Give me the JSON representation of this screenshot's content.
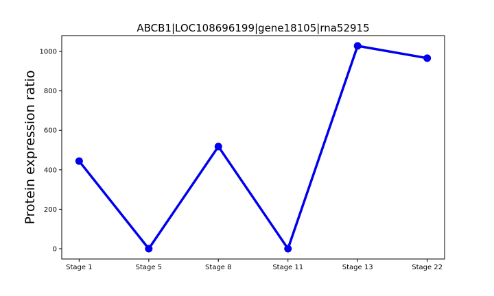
{
  "chart_data": {
    "type": "line",
    "title": "ABCB1|LOC108696199|gene18105|rna52915",
    "xlabel": "",
    "ylabel": "Protein expression ratio",
    "categories": [
      "Stage 1",
      "Stage 5",
      "Stage 8",
      "Stage 11",
      "Stage 13",
      "Stage 22"
    ],
    "series": [
      {
        "values": [
          444,
          0,
          518,
          0,
          1028,
          966
        ],
        "color": "#0000ee"
      }
    ],
    "ylim": [
      -52,
      1080
    ],
    "yticks": [
      0,
      200,
      400,
      600,
      800,
      1000
    ],
    "grid": false,
    "legend": "none"
  }
}
